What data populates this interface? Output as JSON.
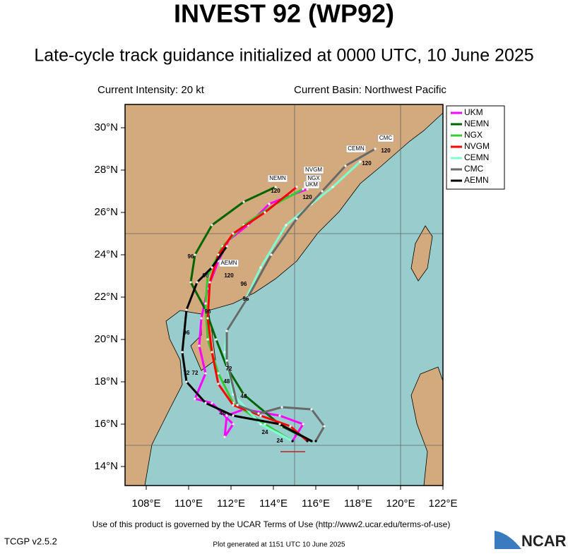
{
  "header": {
    "title": "INVEST 92 (WP92)",
    "subtitle": "Late-cycle track guidance initialized at 0000 UTC, 10 June 2025"
  },
  "info": {
    "intensity": "Current Intensity: 20 kt",
    "basin": "Current Basin: Northwest Pacific"
  },
  "map": {
    "lon_range": [
      107,
      122
    ],
    "lat_range": [
      13.1,
      31.1
    ],
    "xticks": [
      {
        "value": 108,
        "label": "108°E"
      },
      {
        "value": 110,
        "label": "110°E"
      },
      {
        "value": 112,
        "label": "112°E"
      },
      {
        "value": 114,
        "label": "114°E"
      },
      {
        "value": 116,
        "label": "116°E"
      },
      {
        "value": 118,
        "label": "118°E"
      },
      {
        "value": 120,
        "label": "120°E"
      },
      {
        "value": 122,
        "label": "122°E"
      }
    ],
    "yticks": [
      {
        "value": 14,
        "label": "14°N"
      },
      {
        "value": 16,
        "label": "16°N"
      },
      {
        "value": 18,
        "label": "18°N"
      },
      {
        "value": 20,
        "label": "20°N"
      },
      {
        "value": 22,
        "label": "22°N"
      },
      {
        "value": 24,
        "label": "24°N"
      },
      {
        "value": 26,
        "label": "26°N"
      },
      {
        "value": 28,
        "label": "28°N"
      },
      {
        "value": 30,
        "label": "30°N"
      }
    ],
    "grid_lons": [
      115,
      120
    ],
    "grid_lats": [
      15,
      25
    ],
    "tracks": [
      {
        "name": "UKM",
        "color": "#ff00ff",
        "lon": [
          114.9,
          115.4,
          114.3,
          112.6,
          111.8,
          111.7,
          112.1,
          111.1,
          110.3,
          110.8,
          110.5,
          110.6,
          110.9,
          111.4,
          111.9,
          112.8,
          113.8,
          114.8,
          115.6
        ],
        "lat": [
          15.2,
          16.0,
          16.4,
          16.7,
          16.4,
          15.4,
          16.0,
          17.0,
          17.2,
          18.4,
          19.7,
          21.0,
          22.4,
          23.7,
          24.7,
          25.4,
          26.4,
          26.8,
          27.1
        ]
      },
      {
        "name": "NEMN",
        "color": "#006400",
        "lon": [
          115.8,
          114.4,
          112.6,
          111.8,
          111.3,
          110.8,
          110.1,
          110.3,
          111.1,
          112.6,
          114.1
        ],
        "lat": [
          15.2,
          15.9,
          17.4,
          18.7,
          20.0,
          21.4,
          22.7,
          24.0,
          25.4,
          26.5,
          27.2
        ]
      },
      {
        "name": "NGX",
        "color": "#32cd32",
        "lon": [
          114.9,
          113.6,
          112.1,
          111.4,
          110.9,
          110.8,
          110.9,
          111.6,
          112.6,
          114.1,
          115.4
        ],
        "lat": [
          15.2,
          16.0,
          17.0,
          18.4,
          20.0,
          21.7,
          23.0,
          24.4,
          25.4,
          26.4,
          27.1
        ]
      },
      {
        "name": "NVGM",
        "color": "#ff0000",
        "lon": [
          115.6,
          114.8,
          113.4,
          112.1,
          111.4,
          111.1,
          110.9,
          111.0,
          111.4,
          112.1,
          113.6,
          115.1
        ],
        "lat": [
          15.2,
          15.9,
          16.4,
          16.9,
          17.9,
          19.4,
          21.0,
          22.7,
          24.0,
          25.0,
          26.0,
          27.2
        ]
      },
      {
        "name": "CEMN",
        "color": "#7fffd4",
        "lon": [
          114.9,
          113.4,
          112.1,
          111.7,
          111.8,
          112.6,
          113.4,
          114.6,
          115.8,
          116.8,
          118.1
        ],
        "lat": [
          15.2,
          16.0,
          17.4,
          19.4,
          20.4,
          21.7,
          23.4,
          25.4,
          26.4,
          27.2,
          28.4
        ]
      },
      {
        "name": "CMC",
        "color": "#696969",
        "lon": [
          116.0,
          116.4,
          115.8,
          114.4,
          113.3,
          112.3,
          111.8,
          111.8,
          112.8,
          113.9,
          115.1,
          116.3,
          117.4,
          118.8
        ],
        "lat": [
          15.2,
          15.9,
          16.7,
          16.8,
          16.5,
          16.9,
          19.0,
          20.4,
          22.0,
          24.0,
          25.7,
          27.0,
          28.2,
          29.0
        ]
      },
      {
        "name": "AEMN",
        "color": "#000000",
        "lon": [
          115.8,
          114.3,
          112.1,
          110.8,
          109.9,
          109.7,
          109.9,
          110.4,
          111.1,
          111.8
        ],
        "lat": [
          15.2,
          16.0,
          16.4,
          17.0,
          18.0,
          19.4,
          21.4,
          22.7,
          23.4,
          24.4
        ]
      }
    ],
    "hour_labels": [
      {
        "text": "24",
        "lon": 113.6,
        "lat": 15.6
      },
      {
        "text": "24",
        "lon": 114.3,
        "lat": 15.2
      },
      {
        "text": "48",
        "lon": 111.6,
        "lat": 16.5
      },
      {
        "text": "48",
        "lon": 112.6,
        "lat": 17.3
      },
      {
        "text": "48",
        "lon": 111.8,
        "lat": 18.0
      },
      {
        "text": "72",
        "lon": 109.9,
        "lat": 18.4
      },
      {
        "text": "72",
        "lon": 110.3,
        "lat": 18.4
      },
      {
        "text": "72",
        "lon": 111.9,
        "lat": 18.6
      },
      {
        "text": "96",
        "lon": 109.9,
        "lat": 20.3
      },
      {
        "text": "96",
        "lon": 110.9,
        "lat": 21.3
      },
      {
        "text": "96",
        "lon": 112.7,
        "lat": 21.9
      },
      {
        "text": "96",
        "lon": 112.6,
        "lat": 22.6
      },
      {
        "text": "96",
        "lon": 110.8,
        "lat": 23.0
      },
      {
        "text": "96",
        "lon": 110.1,
        "lat": 23.9
      },
      {
        "text": "120",
        "lon": 111.9,
        "lat": 23.0
      },
      {
        "text": "120",
        "lon": 115.6,
        "lat": 26.7
      },
      {
        "text": "120",
        "lon": 118.4,
        "lat": 28.3
      },
      {
        "text": "120",
        "lon": 119.3,
        "lat": 28.9
      },
      {
        "text": "120",
        "lon": 114.1,
        "lat": 27.0
      }
    ],
    "end_labels": [
      {
        "text": "NEMN",
        "lon": 114.2,
        "lat": 27.6
      },
      {
        "text": "NVGM",
        "lon": 115.9,
        "lat": 28.0
      },
      {
        "text": "NGX",
        "lon": 115.9,
        "lat": 27.6
      },
      {
        "text": "UKM",
        "lon": 115.8,
        "lat": 27.3
      },
      {
        "text": "CEMN",
        "lon": 117.9,
        "lat": 29.0
      },
      {
        "text": "CMC",
        "lon": 119.3,
        "lat": 29.5
      },
      {
        "text": "AEMN",
        "lon": 111.9,
        "lat": 23.6
      }
    ]
  },
  "footer": {
    "terms": "Use of this product is governed by the UCAR Terms of Use (http://www2.ucar.edu/terms-of-use)",
    "version": "TCGP v2.5.2",
    "generated": "Plot generated at 1151 UTC   10 June 2025",
    "logo": "NCAR"
  }
}
